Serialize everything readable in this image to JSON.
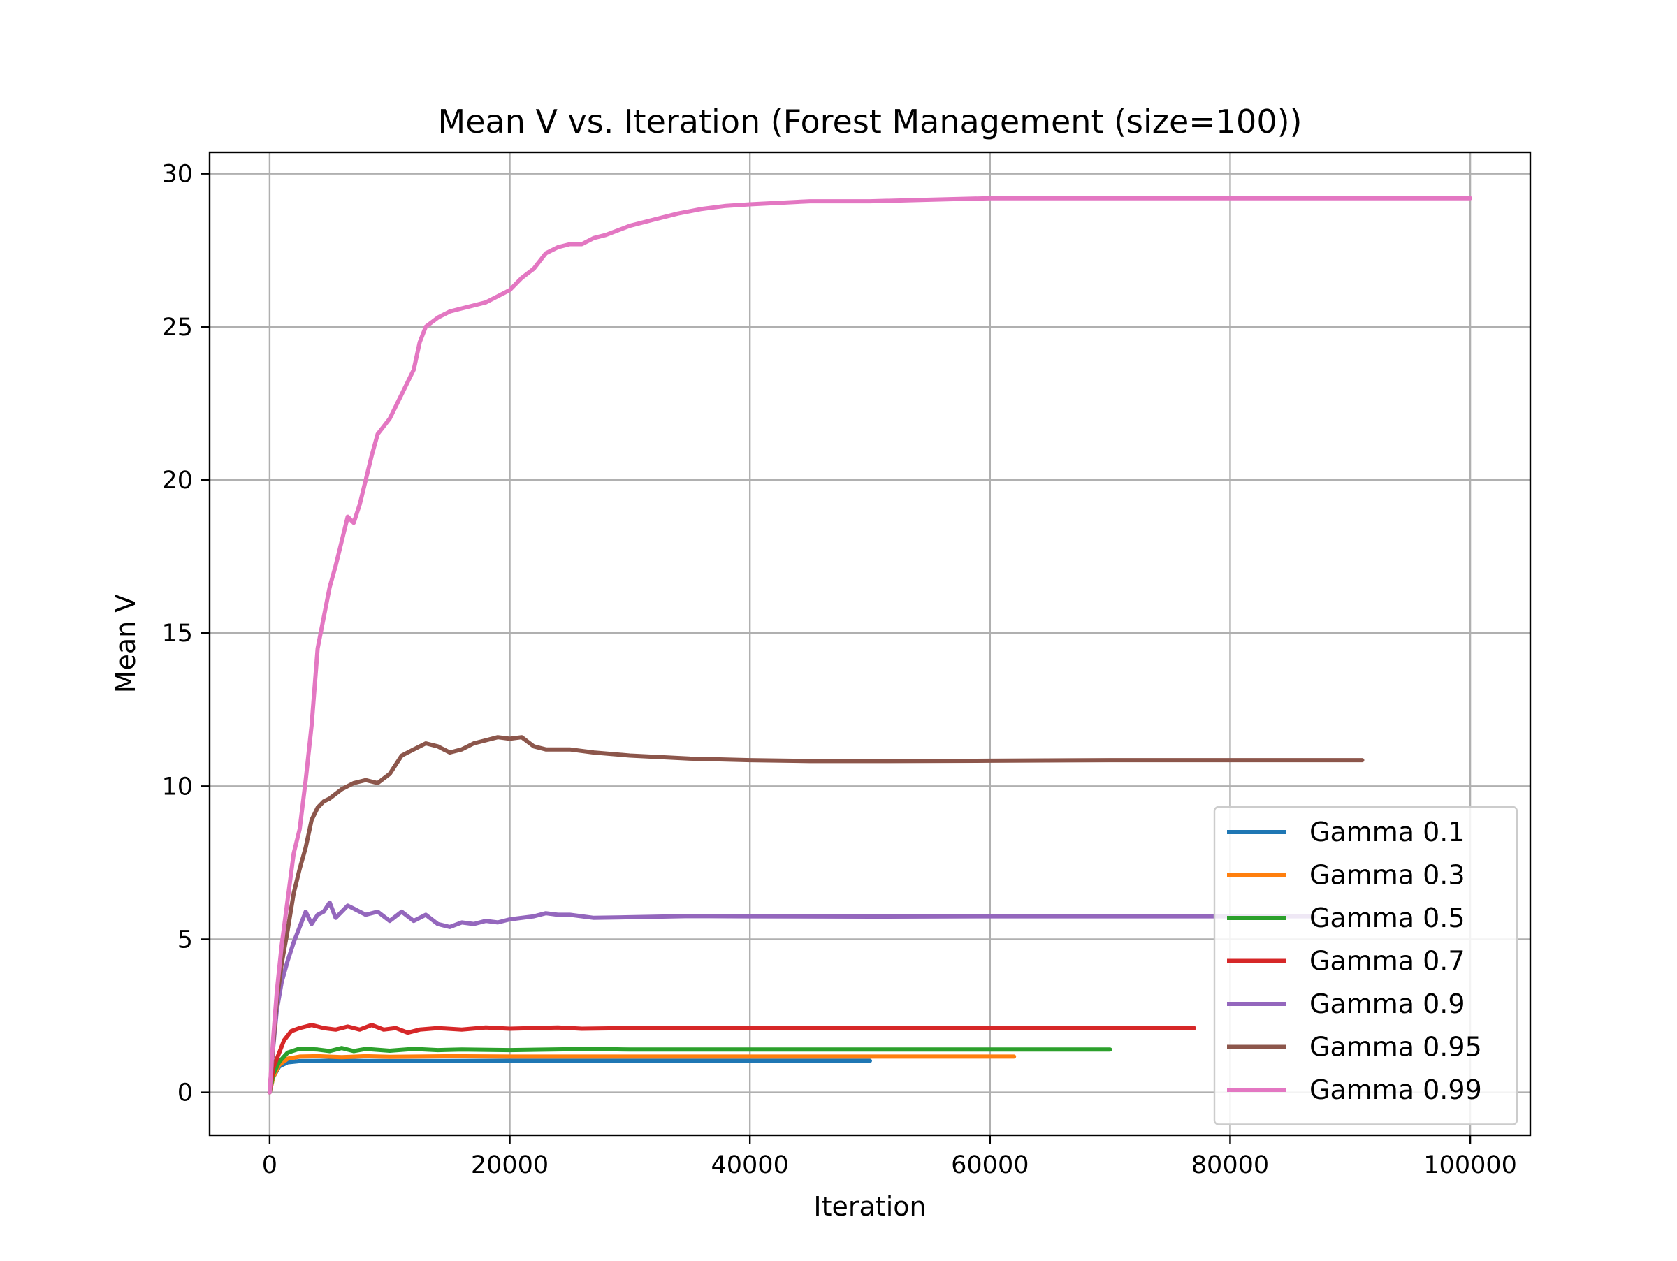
{
  "chart_data": {
    "type": "line",
    "title": "Mean V vs. Iteration (Forest Management (size=100))",
    "xlabel": "Iteration",
    "ylabel": "Mean V",
    "xlim": [
      -5000,
      105000
    ],
    "ylim": [
      -1.4,
      30.7
    ],
    "xticks": [
      0,
      20000,
      40000,
      60000,
      80000,
      100000
    ],
    "xtick_labels": [
      "0",
      "20000",
      "40000",
      "60000",
      "80000",
      "100000"
    ],
    "yticks": [
      0,
      5,
      10,
      15,
      20,
      25,
      30
    ],
    "ytick_labels": [
      "0",
      "5",
      "10",
      "15",
      "20",
      "25",
      "30"
    ],
    "grid": true,
    "legend_position": "lower right",
    "series": [
      {
        "name": "Gamma 0.1",
        "color": "#1f77b4",
        "points": [
          [
            0,
            0
          ],
          [
            300,
            0.5
          ],
          [
            800,
            0.85
          ],
          [
            1500,
            0.98
          ],
          [
            2500,
            1.02
          ],
          [
            5000,
            1.03
          ],
          [
            10000,
            1.02
          ],
          [
            20000,
            1.03
          ],
          [
            30000,
            1.03
          ],
          [
            40000,
            1.03
          ],
          [
            50000,
            1.03
          ]
        ]
      },
      {
        "name": "Gamma 0.3",
        "color": "#ff7f0e",
        "points": [
          [
            0,
            0
          ],
          [
            300,
            0.5
          ],
          [
            800,
            0.9
          ],
          [
            1500,
            1.1
          ],
          [
            2500,
            1.17
          ],
          [
            4000,
            1.18
          ],
          [
            6000,
            1.15
          ],
          [
            8000,
            1.18
          ],
          [
            10000,
            1.16
          ],
          [
            15000,
            1.18
          ],
          [
            20000,
            1.17
          ],
          [
            30000,
            1.17
          ],
          [
            40000,
            1.17
          ],
          [
            50000,
            1.17
          ],
          [
            62000,
            1.17
          ]
        ]
      },
      {
        "name": "Gamma 0.5",
        "color": "#2ca02c",
        "points": [
          [
            0,
            0
          ],
          [
            300,
            0.6
          ],
          [
            800,
            1.0
          ],
          [
            1500,
            1.3
          ],
          [
            2500,
            1.43
          ],
          [
            4000,
            1.4
          ],
          [
            5000,
            1.35
          ],
          [
            6000,
            1.45
          ],
          [
            7000,
            1.35
          ],
          [
            8000,
            1.42
          ],
          [
            10000,
            1.36
          ],
          [
            12000,
            1.42
          ],
          [
            14000,
            1.38
          ],
          [
            16000,
            1.4
          ],
          [
            20000,
            1.38
          ],
          [
            27000,
            1.42
          ],
          [
            30000,
            1.4
          ],
          [
            40000,
            1.4
          ],
          [
            50000,
            1.4
          ],
          [
            60000,
            1.4
          ],
          [
            70000,
            1.4
          ]
        ]
      },
      {
        "name": "Gamma 0.7",
        "color": "#d62728",
        "points": [
          [
            0,
            0
          ],
          [
            300,
            0.8
          ],
          [
            800,
            1.3
          ],
          [
            1200,
            1.7
          ],
          [
            1800,
            2.0
          ],
          [
            2500,
            2.1
          ],
          [
            3500,
            2.2
          ],
          [
            4500,
            2.1
          ],
          [
            5500,
            2.05
          ],
          [
            6500,
            2.15
          ],
          [
            7500,
            2.05
          ],
          [
            8500,
            2.2
          ],
          [
            9500,
            2.05
          ],
          [
            10500,
            2.1
          ],
          [
            11500,
            1.95
          ],
          [
            12500,
            2.05
          ],
          [
            14000,
            2.1
          ],
          [
            16000,
            2.05
          ],
          [
            18000,
            2.12
          ],
          [
            20000,
            2.08
          ],
          [
            22000,
            2.1
          ],
          [
            24000,
            2.12
          ],
          [
            26000,
            2.08
          ],
          [
            30000,
            2.1
          ],
          [
            40000,
            2.1
          ],
          [
            50000,
            2.1
          ],
          [
            60000,
            2.1
          ],
          [
            70000,
            2.1
          ],
          [
            77000,
            2.1
          ]
        ]
      },
      {
        "name": "Gamma 0.9",
        "color": "#9467bd",
        "points": [
          [
            0,
            0
          ],
          [
            300,
            1.5
          ],
          [
            600,
            2.7
          ],
          [
            1000,
            3.6
          ],
          [
            1500,
            4.3
          ],
          [
            2000,
            4.9
          ],
          [
            2500,
            5.4
          ],
          [
            3000,
            5.9
          ],
          [
            3500,
            5.5
          ],
          [
            4000,
            5.8
          ],
          [
            4500,
            5.9
          ],
          [
            5000,
            6.2
          ],
          [
            5500,
            5.7
          ],
          [
            6000,
            5.9
          ],
          [
            6500,
            6.1
          ],
          [
            7000,
            6.0
          ],
          [
            8000,
            5.8
          ],
          [
            9000,
            5.9
          ],
          [
            10000,
            5.6
          ],
          [
            11000,
            5.9
          ],
          [
            12000,
            5.6
          ],
          [
            13000,
            5.8
          ],
          [
            14000,
            5.5
          ],
          [
            15000,
            5.4
          ],
          [
            16000,
            5.55
          ],
          [
            17000,
            5.5
          ],
          [
            18000,
            5.6
          ],
          [
            19000,
            5.55
          ],
          [
            20000,
            5.65
          ],
          [
            22000,
            5.75
          ],
          [
            23000,
            5.85
          ],
          [
            24000,
            5.8
          ],
          [
            25000,
            5.8
          ],
          [
            27000,
            5.7
          ],
          [
            30000,
            5.72
          ],
          [
            35000,
            5.76
          ],
          [
            40000,
            5.75
          ],
          [
            50000,
            5.74
          ],
          [
            60000,
            5.75
          ],
          [
            70000,
            5.75
          ],
          [
            80000,
            5.75
          ],
          [
            87000,
            5.75
          ]
        ]
      },
      {
        "name": "Gamma 0.95",
        "color": "#8c564b",
        "points": [
          [
            0,
            0
          ],
          [
            300,
            1.6
          ],
          [
            600,
            3.0
          ],
          [
            1000,
            4.2
          ],
          [
            1500,
            5.3
          ],
          [
            2000,
            6.5
          ],
          [
            2500,
            7.3
          ],
          [
            3000,
            8.0
          ],
          [
            3500,
            8.9
          ],
          [
            4000,
            9.3
          ],
          [
            4500,
            9.5
          ],
          [
            5000,
            9.6
          ],
          [
            6000,
            9.9
          ],
          [
            7000,
            10.1
          ],
          [
            8000,
            10.2
          ],
          [
            9000,
            10.1
          ],
          [
            10000,
            10.4
          ],
          [
            11000,
            11.0
          ],
          [
            12000,
            11.2
          ],
          [
            13000,
            11.4
          ],
          [
            14000,
            11.3
          ],
          [
            15000,
            11.1
          ],
          [
            16000,
            11.2
          ],
          [
            17000,
            11.4
          ],
          [
            18000,
            11.5
          ],
          [
            19000,
            11.6
          ],
          [
            20000,
            11.55
          ],
          [
            21000,
            11.6
          ],
          [
            22000,
            11.3
          ],
          [
            23000,
            11.2
          ],
          [
            25000,
            11.2
          ],
          [
            27000,
            11.1
          ],
          [
            30000,
            11.0
          ],
          [
            35000,
            10.9
          ],
          [
            40000,
            10.85
          ],
          [
            45000,
            10.82
          ],
          [
            50000,
            10.82
          ],
          [
            60000,
            10.83
          ],
          [
            70000,
            10.85
          ],
          [
            80000,
            10.85
          ],
          [
            91000,
            10.85
          ]
        ]
      },
      {
        "name": "Gamma 0.99",
        "color": "#e377c2",
        "points": [
          [
            0,
            0
          ],
          [
            300,
            1.8
          ],
          [
            600,
            3.3
          ],
          [
            1000,
            4.8
          ],
          [
            1500,
            6.3
          ],
          [
            2000,
            7.8
          ],
          [
            2500,
            8.6
          ],
          [
            3000,
            10.2
          ],
          [
            3500,
            12.0
          ],
          [
            4000,
            14.5
          ],
          [
            4500,
            15.5
          ],
          [
            5000,
            16.5
          ],
          [
            5500,
            17.2
          ],
          [
            6000,
            18.0
          ],
          [
            6500,
            18.8
          ],
          [
            7000,
            18.6
          ],
          [
            7500,
            19.2
          ],
          [
            8000,
            20.0
          ],
          [
            8500,
            20.8
          ],
          [
            9000,
            21.5
          ],
          [
            10000,
            22.0
          ],
          [
            11000,
            22.8
          ],
          [
            12000,
            23.6
          ],
          [
            12500,
            24.5
          ],
          [
            13000,
            25.0
          ],
          [
            14000,
            25.3
          ],
          [
            15000,
            25.5
          ],
          [
            16000,
            25.6
          ],
          [
            17000,
            25.7
          ],
          [
            18000,
            25.8
          ],
          [
            19000,
            26.0
          ],
          [
            20000,
            26.2
          ],
          [
            21000,
            26.6
          ],
          [
            22000,
            26.9
          ],
          [
            23000,
            27.4
          ],
          [
            24000,
            27.6
          ],
          [
            25000,
            27.7
          ],
          [
            26000,
            27.7
          ],
          [
            27000,
            27.9
          ],
          [
            28000,
            28.0
          ],
          [
            30000,
            28.3
          ],
          [
            32000,
            28.5
          ],
          [
            34000,
            28.7
          ],
          [
            36000,
            28.85
          ],
          [
            38000,
            28.95
          ],
          [
            40000,
            29.0
          ],
          [
            45000,
            29.1
          ],
          [
            50000,
            29.1
          ],
          [
            55000,
            29.15
          ],
          [
            60000,
            29.2
          ],
          [
            70000,
            29.2
          ],
          [
            80000,
            29.2
          ],
          [
            90000,
            29.2
          ],
          [
            100000,
            29.2
          ]
        ]
      }
    ]
  }
}
